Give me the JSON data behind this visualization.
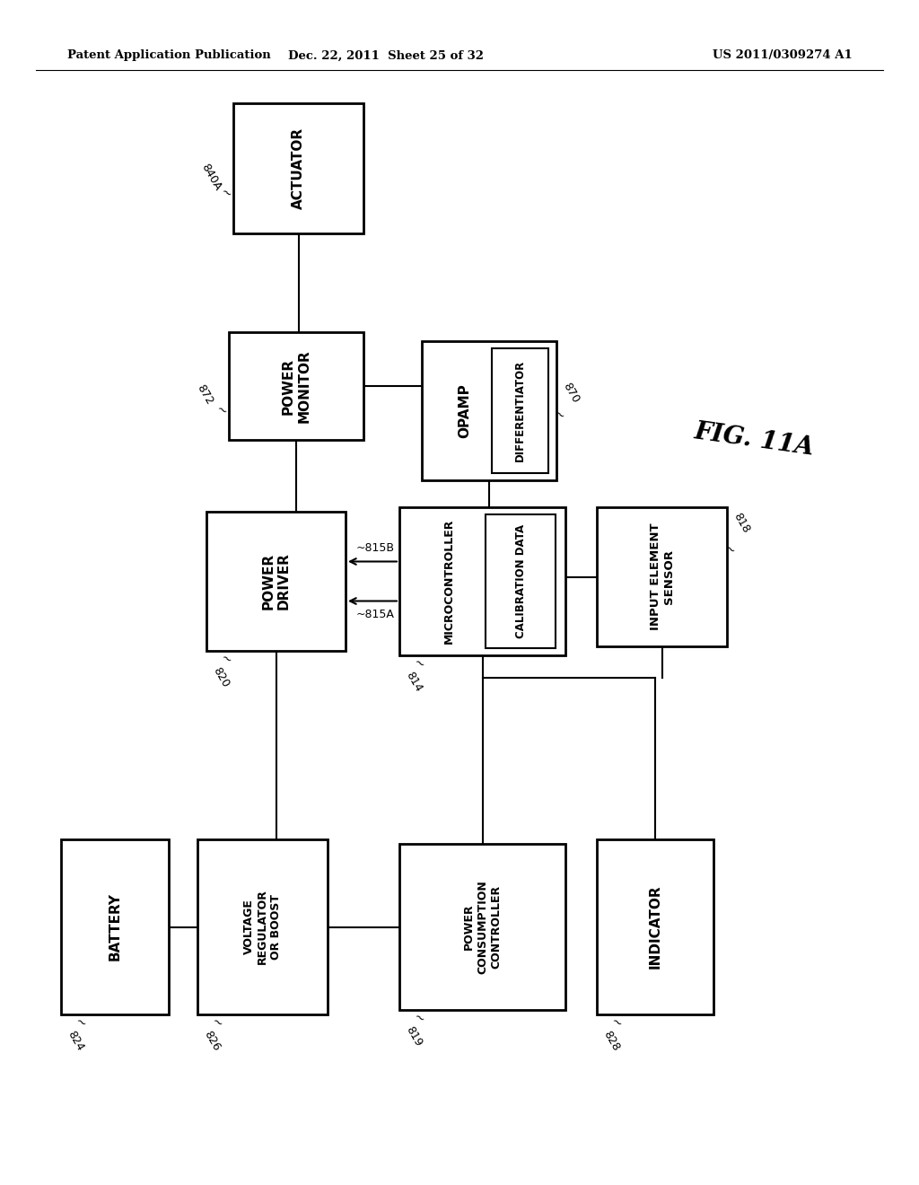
{
  "background_color": "#ffffff",
  "header_left": "Patent Application Publication",
  "header_center": "Dec. 22, 2011  Sheet 25 of 32",
  "header_right": "US 2011/0309274 A1",
  "fig_label": "FIG. 11A"
}
